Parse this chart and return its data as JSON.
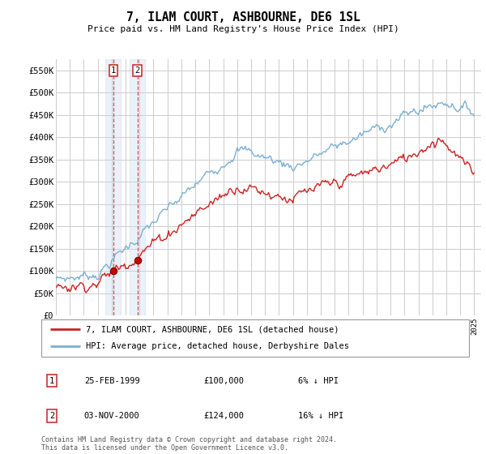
{
  "title": "7, ILAM COURT, ASHBOURNE, DE6 1SL",
  "subtitle": "Price paid vs. HM Land Registry's House Price Index (HPI)",
  "ylabel_ticks": [
    "£0",
    "£50K",
    "£100K",
    "£150K",
    "£200K",
    "£250K",
    "£300K",
    "£350K",
    "£400K",
    "£450K",
    "£500K",
    "£550K"
  ],
  "ytick_values": [
    0,
    50000,
    100000,
    150000,
    200000,
    250000,
    300000,
    350000,
    400000,
    450000,
    500000,
    550000
  ],
  "ylim": [
    0,
    575000
  ],
  "transactions": [
    {
      "date_num": 1999.12,
      "price": 100000,
      "label": "1"
    },
    {
      "date_num": 2000.84,
      "price": 124000,
      "label": "2"
    }
  ],
  "vline_color": "#cc3333",
  "vline_dates": [
    1999.12,
    2000.84
  ],
  "sale_marker_color": "#cc0000",
  "hpi_line_color": "#7aafd4",
  "property_line_color": "#cc2222",
  "legend_property_label": "7, ILAM COURT, ASHBOURNE, DE6 1SL (detached house)",
  "legend_hpi_label": "HPI: Average price, detached house, Derbyshire Dales",
  "table_entries": [
    {
      "num": "1",
      "date": "25-FEB-1999",
      "price": "£100,000",
      "note": "6% ↓ HPI"
    },
    {
      "num": "2",
      "date": "03-NOV-2000",
      "price": "£124,000",
      "note": "16% ↓ HPI"
    }
  ],
  "footer": "Contains HM Land Registry data © Crown copyright and database right 2024.\nThis data is licensed under the Open Government Licence v3.0.",
  "background_color": "#ffffff",
  "grid_color": "#cccccc",
  "shade_color": "#c8d8ee"
}
